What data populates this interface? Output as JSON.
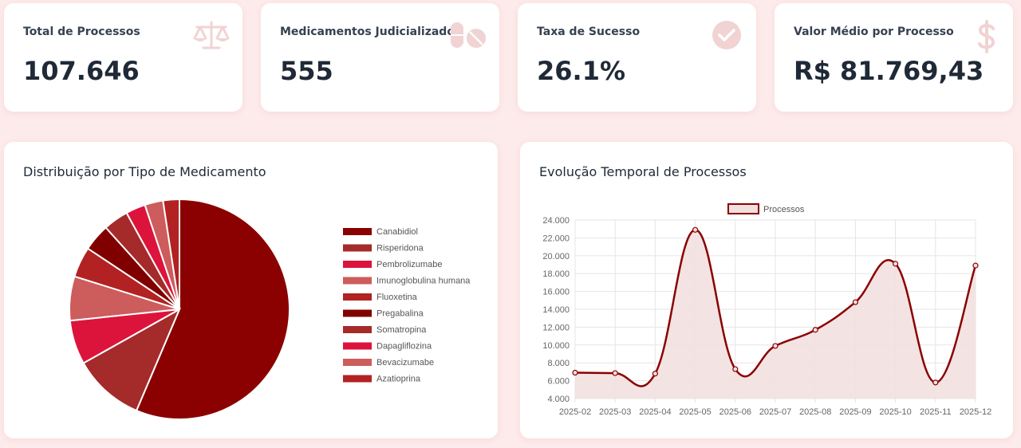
{
  "stats": [
    {
      "title": "Total de Processos",
      "value": "107.646",
      "icon": "scale-icon"
    },
    {
      "title": "Medicamentos Judicializados",
      "value": "555",
      "icon": "pills-icon"
    },
    {
      "title": "Taxa de Sucesso",
      "value": "26.1%",
      "icon": "check-circle-icon"
    },
    {
      "title": "Valor Médio por Processo",
      "value": "R$ 81.769,43",
      "icon": "dollar-icon"
    }
  ],
  "pie_panel": {
    "title": "Distribuição por Tipo de Medicamento"
  },
  "line_panel": {
    "title": "Evolução Temporal de Processos"
  },
  "colors": {
    "background": "#fdeaea",
    "card": "#ffffff",
    "icon": "#f1d3d3",
    "series": "#8b0000",
    "fill": "#f2e0e0"
  },
  "chart_data": [
    {
      "type": "pie",
      "title": "Distribuição por Tipo de Medicamento",
      "legend_position": "right",
      "labels": [
        "Canabidiol",
        "Risperidona",
        "Pembrolizumabe",
        "Imunoglobulina humana",
        "Fluoxetina",
        "Pregabalina",
        "Somatropina",
        "Dapagliflozina",
        "Bevacizumabe",
        "Azatioprina"
      ],
      "values": [
        56.5,
        10.5,
        6.5,
        6.5,
        4.5,
        4.0,
        3.7,
        2.9,
        2.7,
        2.4
      ],
      "colors": [
        "#8b0000",
        "#a52a2a",
        "#dc143c",
        "#cd5c5c",
        "#b22222",
        "#800000",
        "#a52a2a",
        "#dc143c",
        "#cd5c5c",
        "#b22222"
      ]
    },
    {
      "type": "area",
      "title": "Evolução Temporal de Processos",
      "x": [
        "2025-02",
        "2025-03",
        "2025-04",
        "2025-05",
        "2025-06",
        "2025-07",
        "2025-08",
        "2025-09",
        "2025-10",
        "2025-11",
        "2025-12"
      ],
      "series": [
        {
          "name": "Processos",
          "values": [
            6900,
            6850,
            6800,
            22900,
            7300,
            9900,
            11700,
            14800,
            19100,
            5800,
            18900
          ]
        }
      ],
      "ylim": [
        4000,
        24000
      ],
      "yticks": [
        "24.000",
        "22.000",
        "20.000",
        "18.000",
        "16.000",
        "14.000",
        "12.000",
        "10.000",
        "8.000",
        "6.000",
        "4.000"
      ],
      "legend_position": "top",
      "grid": true
    }
  ]
}
